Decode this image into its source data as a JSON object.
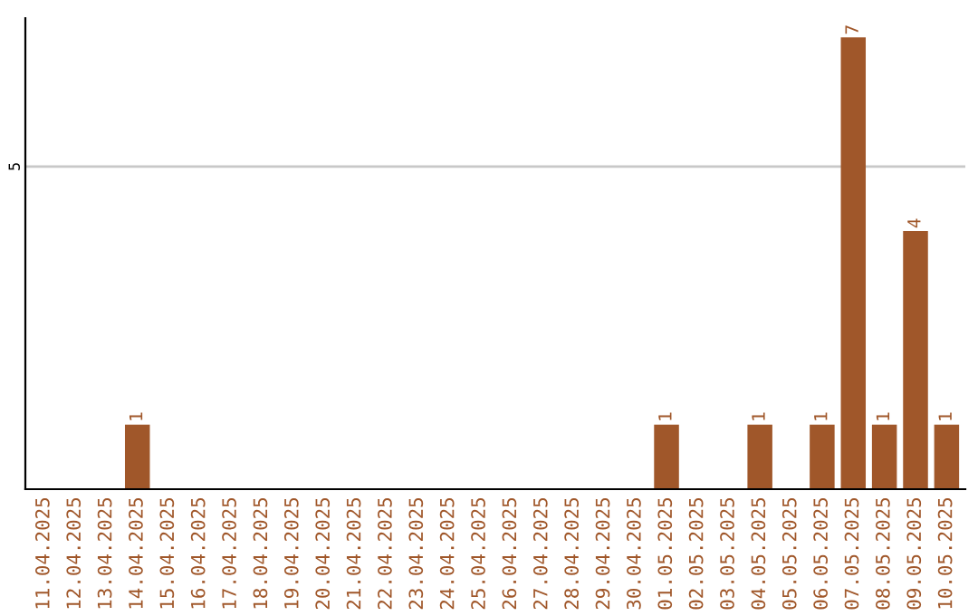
{
  "chart_data": {
    "type": "bar",
    "categories": [
      "11.04.2025",
      "12.04.2025",
      "13.04.2025",
      "14.04.2025",
      "15.04.2025",
      "16.04.2025",
      "17.04.2025",
      "18.04.2025",
      "19.04.2025",
      "20.04.2025",
      "21.04.2025",
      "22.04.2025",
      "23.04.2025",
      "24.04.2025",
      "25.04.2025",
      "26.04.2025",
      "27.04.2025",
      "28.04.2025",
      "29.04.2025",
      "30.04.2025",
      "01.05.2025",
      "02.05.2025",
      "03.05.2025",
      "04.05.2025",
      "05.05.2025",
      "06.05.2025",
      "07.05.2025",
      "08.05.2025",
      "09.05.2025",
      "10.05.2025"
    ],
    "values": [
      0,
      0,
      0,
      1,
      0,
      0,
      0,
      0,
      0,
      0,
      0,
      0,
      0,
      0,
      0,
      0,
      0,
      0,
      0,
      0,
      1,
      0,
      0,
      1,
      0,
      1,
      7,
      1,
      4,
      1
    ],
    "value_labels": [
      null,
      null,
      null,
      "1",
      null,
      null,
      null,
      null,
      null,
      null,
      null,
      null,
      null,
      null,
      null,
      null,
      null,
      null,
      null,
      null,
      "1",
      null,
      null,
      "1",
      null,
      "1",
      "7",
      "1",
      "4",
      "1"
    ],
    "color": "#a0572a",
    "ylim": [
      0,
      7.3
    ],
    "yticks": [
      5
    ],
    "grid": "y"
  }
}
